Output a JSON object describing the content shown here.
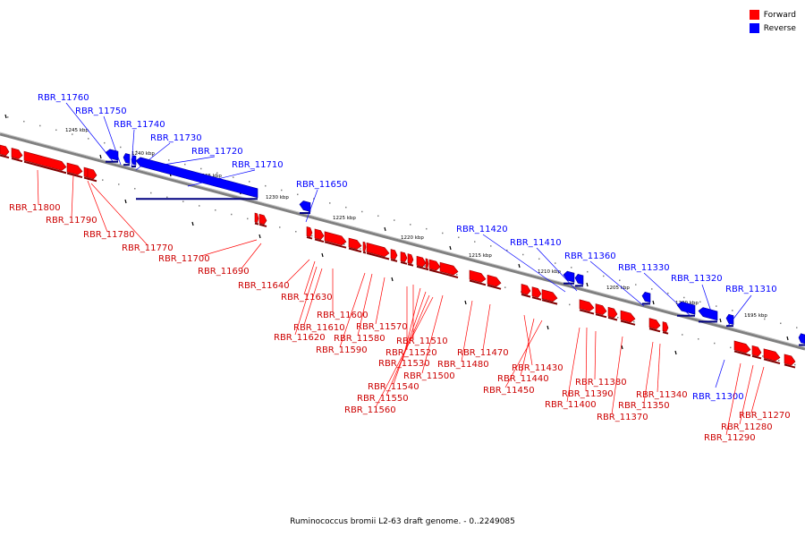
{
  "legend": {
    "forward_label": "Forward",
    "reverse_label": "Reverse",
    "forward_color": "#ff0000",
    "reverse_color": "#0000ff"
  },
  "footer": "Ruminococcus bromii L2-63 draft genome. - 0..2249085",
  "scale_labels": [
    "1245 kbp",
    "1240 kbp",
    "1235 kbp",
    "1230 kbp",
    "1225 kbp",
    "1220 kbp",
    "1215 kbp",
    "1210 kbp",
    "1205 kbp",
    "1200 kbp",
    "1195 kbp"
  ],
  "reverse_genes": [
    "RBR_11760",
    "RBR_11750",
    "RBR_11740",
    "RBR_11730",
    "RBR_11720",
    "RBR_11710",
    "RBR_11650",
    "RBR_11420",
    "RBR_11410",
    "RBR_11360",
    "RBR_11330",
    "RBR_11320",
    "RBR_11310",
    "RBR_11300"
  ],
  "forward_genes": [
    "RBR_11800",
    "RBR_11790",
    "RBR_11780",
    "RBR_11770",
    "RBR_11700",
    "RBR_11690",
    "RBR_11640",
    "RBR_11630",
    "RBR_11600",
    "RBR_11610",
    "RBR_11620",
    "RBR_11570",
    "RBR_11580",
    "RBR_11590",
    "RBR_11510",
    "RBR_11520",
    "RBR_11530",
    "RBR_11540",
    "RBR_11550",
    "RBR_11560",
    "RBR_11500",
    "RBR_11480",
    "RBR_11470",
    "RBR_11430",
    "RBR_11440",
    "RBR_11450",
    "RBR_11380",
    "RBR_11390",
    "RBR_11400",
    "RBR_11370",
    "RBR_11340",
    "RBR_11350",
    "RBR_11270",
    "RBR_11280",
    "RBR_11290"
  ]
}
